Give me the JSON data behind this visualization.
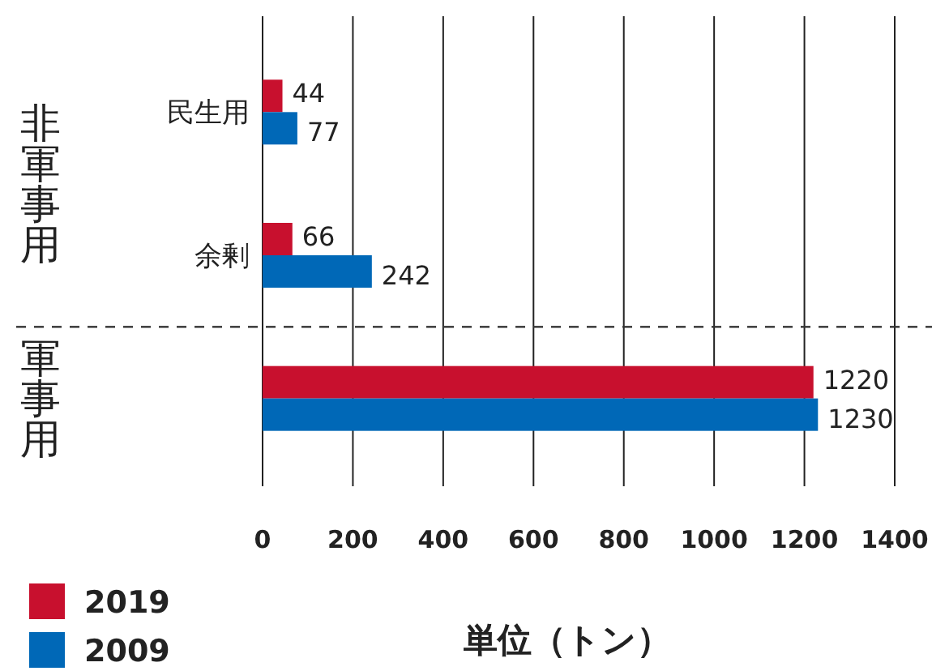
{
  "chart_data": {
    "type": "bar",
    "orientation": "horizontal",
    "categories": [
      "民生用",
      "余剰",
      null
    ],
    "series": [
      {
        "name": "2019",
        "color": "#c8102e",
        "values": [
          44,
          66,
          1220
        ]
      },
      {
        "name": "2009",
        "color": "#0068b7",
        "values": [
          77,
          242,
          1230
        ]
      }
    ],
    "xlim": [
      0,
      1400
    ],
    "xticks": [
      0,
      200,
      400,
      600,
      800,
      1000,
      1200,
      1400
    ],
    "grid": "x",
    "data_labels": true,
    "legend": "bottom left",
    "xlabel": "単位（トン）",
    "annotations": [
      "非軍事用",
      "軍事用"
    ]
  }
}
